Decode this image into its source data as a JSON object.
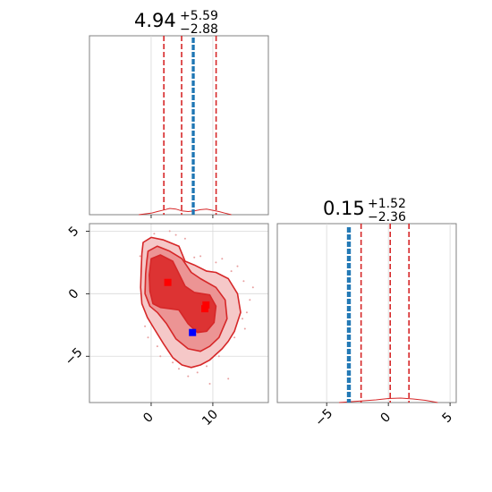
{
  "chart_data": [
    {
      "type": "line",
      "panel": "top-left-marginal",
      "title": {
        "median": "4.94",
        "plus": "+5.59",
        "minus": "−2.88"
      },
      "xlim": [
        -10,
        19
      ],
      "grid": true,
      "quantile_lines_x": [
        2.06,
        4.94,
        10.53
      ],
      "truth_lines_x": [
        6.7,
        6.85,
        6.95
      ],
      "histogram": {
        "x": [
          -2,
          0,
          1,
          2,
          3,
          4,
          5,
          6,
          7,
          8,
          9,
          10,
          11,
          12,
          13
        ],
        "density": [
          0,
          0.005,
          0.01,
          0.015,
          0.02,
          0.018,
          0.012,
          0.01,
          0.012,
          0.016,
          0.018,
          0.014,
          0.01,
          0.005,
          0
        ]
      },
      "colors": {
        "quantile": "#d62728",
        "truth": "#1f77b4"
      }
    },
    {
      "type": "line",
      "panel": "bottom-right-marginal",
      "title": {
        "median": "0.15",
        "plus": "+1.52",
        "minus": "−2.36"
      },
      "xlim": [
        -9,
        5.5
      ],
      "xticks": [
        -5,
        0,
        5
      ],
      "xtick_labels": [
        "−5",
        "0",
        "5"
      ],
      "grid": true,
      "quantile_lines_x": [
        -2.21,
        0.15,
        1.67
      ],
      "truth_lines_x": [
        -3.3,
        -3.2,
        -3.1
      ],
      "histogram": {
        "x": [
          -4,
          -3,
          -2,
          -1,
          0,
          1,
          2,
          3,
          4
        ],
        "density": [
          0,
          0.004,
          0.008,
          0.012,
          0.018,
          0.02,
          0.016,
          0.01,
          0
        ]
      },
      "colors": {
        "quantile": "#d62728",
        "truth": "#1f77b4"
      }
    },
    {
      "type": "scatter",
      "panel": "bottom-left-2d",
      "xlim": [
        -10,
        19
      ],
      "ylim": [
        -8.7,
        5.6
      ],
      "xticks": [
        0,
        10
      ],
      "xtick_labels": [
        "0",
        "10"
      ],
      "yticks": [
        5,
        0,
        -5
      ],
      "ytick_labels": [
        "5",
        "0",
        "−5"
      ],
      "grid": true,
      "contours": [
        {
          "level": "outer",
          "color": "#f5c8c8",
          "points": [
            [
              -1.3,
              4.1
            ],
            [
              0,
              4.5
            ],
            [
              2,
              4.3
            ],
            [
              4.5,
              3.8
            ],
            [
              5.5,
              2.6
            ],
            [
              7,
              2.3
            ],
            [
              9,
              1.8
            ],
            [
              10.5,
              1.7
            ],
            [
              12.5,
              1.2
            ],
            [
              14,
              0
            ],
            [
              14.5,
              -1.5
            ],
            [
              13.5,
              -3
            ],
            [
              12.5,
              -3.8
            ],
            [
              11.5,
              -4.4
            ],
            [
              9.5,
              -5.3
            ],
            [
              8,
              -5.7
            ],
            [
              6.5,
              -5.9
            ],
            [
              5,
              -5.7
            ],
            [
              3.5,
              -5.1
            ],
            [
              2,
              -4
            ],
            [
              0.5,
              -2.8
            ],
            [
              -0.6,
              -1.9
            ],
            [
              -1.5,
              -0.8
            ],
            [
              -1.7,
              0.5
            ],
            [
              -1.6,
              2
            ],
            [
              -1.5,
              3.2
            ]
          ]
        },
        {
          "level": "middle",
          "color": "#ec9494",
          "points": [
            [
              -0.5,
              3.4
            ],
            [
              1,
              3.8
            ],
            [
              3,
              3.4
            ],
            [
              5,
              2.8
            ],
            [
              6.5,
              1.7
            ],
            [
              8,
              1.2
            ],
            [
              10.5,
              0.5
            ],
            [
              12,
              -0.5
            ],
            [
              12.3,
              -2
            ],
            [
              11,
              -3.5
            ],
            [
              9.5,
              -4.2
            ],
            [
              8,
              -4.6
            ],
            [
              6,
              -4.4
            ],
            [
              4,
              -3.6
            ],
            [
              2.5,
              -2.4
            ],
            [
              1,
              -1.5
            ],
            [
              -0.2,
              -1
            ],
            [
              -1,
              0
            ],
            [
              -0.9,
              1.6
            ],
            [
              -0.7,
              2.6
            ]
          ]
        },
        {
          "level": "inner",
          "color": "#dd3333",
          "points": [
            [
              0,
              2.8
            ],
            [
              1.5,
              3.1
            ],
            [
              3.5,
              2.6
            ],
            [
              4.5,
              1.6
            ],
            [
              5.5,
              0.6
            ],
            [
              7,
              0.1
            ],
            [
              9.5,
              -0.1
            ],
            [
              10.5,
              -1
            ],
            [
              10.2,
              -2.3
            ],
            [
              9,
              -3
            ],
            [
              7.5,
              -3.1
            ],
            [
              6,
              -2.4
            ],
            [
              4.5,
              -1.3
            ],
            [
              3,
              -1.2
            ],
            [
              1.5,
              -1.1
            ],
            [
              0.3,
              -0.8
            ],
            [
              -0.2,
              0.2
            ],
            [
              -0.3,
              1.5
            ]
          ]
        }
      ],
      "markers": [
        {
          "x": 2.7,
          "y": 0.9,
          "color": "#ff0000"
        },
        {
          "x": 8.9,
          "y": -0.9,
          "color": "#ff0000"
        },
        {
          "x": 8.7,
          "y": -1.2,
          "color": "#ff0000"
        },
        {
          "x": 6.7,
          "y": -3.1,
          "color": "#0000ff"
        }
      ],
      "scatter_points": {
        "x": [
          -1.8,
          0.5,
          3,
          5.5,
          8,
          10.5,
          13,
          15,
          16,
          14.8,
          12,
          9,
          6,
          3.5,
          1,
          -1,
          -0.5,
          2,
          4.5,
          7.5,
          11,
          13.5,
          15.5,
          16.5,
          11.5,
          7,
          4,
          1.5,
          9.5,
          12.5,
          14,
          15.2
        ],
        "y": [
          3,
          4.8,
          5,
          4.4,
          3,
          2.5,
          1.8,
          1,
          -0.5,
          -2,
          -4,
          -5.8,
          -6.6,
          -5.5,
          -4.2,
          -2.6,
          -3.5,
          4.2,
          -6,
          -6.3,
          -5,
          -3.5,
          -1.5,
          0.5,
          2.8,
          2.9,
          4.7,
          -5,
          -7.2,
          -6.8,
          2.2,
          -2.8
        ]
      },
      "colors": {
        "contour_line": "#d62728",
        "scatter": "#e8a0a0"
      }
    }
  ]
}
